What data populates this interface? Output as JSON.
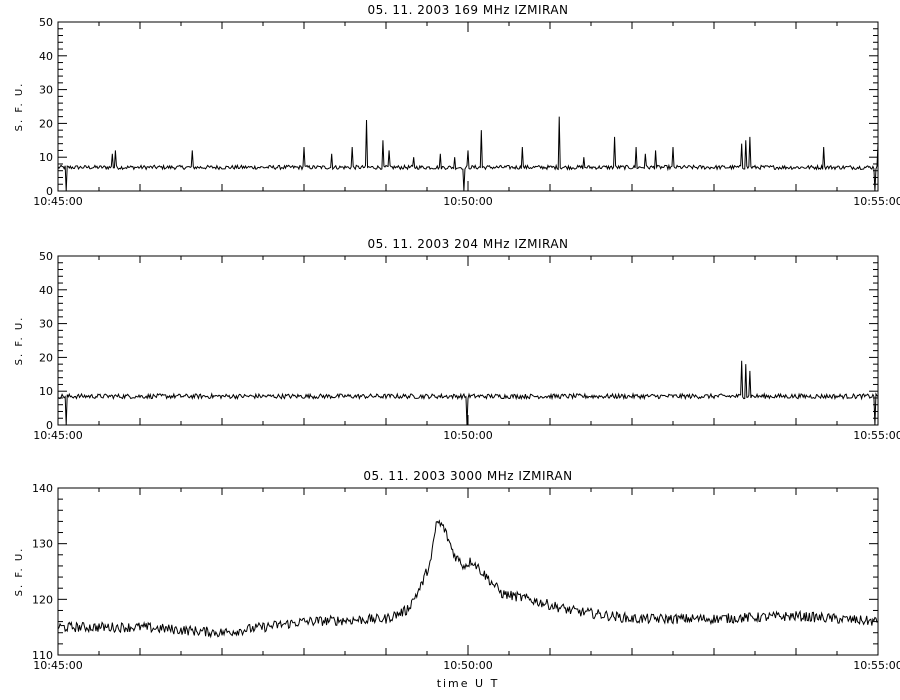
{
  "chart_data": [
    {
      "type": "line",
      "title": "05.  11.  2003    169 MHz    IZMIRAN",
      "ylabel": "S. F. U.",
      "xlabel": "",
      "x_tick_labels": [
        "10:45:00",
        "10:50:00",
        "10:55:00"
      ],
      "xlim": [
        "10:45:00",
        "10:55:00"
      ],
      "ylim": [
        0,
        50
      ],
      "y_ticks": [
        0,
        10,
        20,
        30,
        40,
        50
      ],
      "series": [
        {
          "baseline": 7,
          "noise": 0.6,
          "events": [
            {
              "t": "10:45:06",
              "v": 0
            },
            {
              "t": "10:45:40",
              "v": 11
            },
            {
              "t": "10:45:42",
              "v": 12
            },
            {
              "t": "10:46:38",
              "v": 12
            },
            {
              "t": "10:48:00",
              "v": 13
            },
            {
              "t": "10:48:20",
              "v": 11
            },
            {
              "t": "10:48:35",
              "v": 13
            },
            {
              "t": "10:48:46",
              "v": 21
            },
            {
              "t": "10:48:58",
              "v": 15
            },
            {
              "t": "10:49:02",
              "v": 12
            },
            {
              "t": "10:49:20",
              "v": 10
            },
            {
              "t": "10:49:40",
              "v": 11
            },
            {
              "t": "10:49:50",
              "v": 10
            },
            {
              "t": "10:49:57",
              "v": 0
            },
            {
              "t": "10:50:00",
              "v": 12
            },
            {
              "t": "10:50:10",
              "v": 18
            },
            {
              "t": "10:50:40",
              "v": 13
            },
            {
              "t": "10:51:07",
              "v": 22
            },
            {
              "t": "10:51:25",
              "v": 10
            },
            {
              "t": "10:51:47",
              "v": 16
            },
            {
              "t": "10:52:03",
              "v": 13
            },
            {
              "t": "10:52:10",
              "v": 11
            },
            {
              "t": "10:52:17",
              "v": 12
            },
            {
              "t": "10:52:30",
              "v": 13
            },
            {
              "t": "10:53:20",
              "v": 14
            },
            {
              "t": "10:53:23",
              "v": 15
            },
            {
              "t": "10:53:26",
              "v": 16
            },
            {
              "t": "10:54:20",
              "v": 13
            },
            {
              "t": "10:54:58",
              "v": 0
            },
            {
              "t": "10:55:00",
              "v": 14
            }
          ]
        }
      ]
    },
    {
      "type": "line",
      "title": "05.  11.  2003    204 MHz    IZMIRAN",
      "ylabel": "S. F. U.",
      "xlabel": "",
      "x_tick_labels": [
        "10:45:00",
        "10:50:00",
        "10:55:00"
      ],
      "xlim": [
        "10:45:00",
        "10:55:00"
      ],
      "ylim": [
        0,
        50
      ],
      "y_ticks": [
        0,
        10,
        20,
        30,
        40,
        50
      ],
      "series": [
        {
          "baseline": 8.5,
          "noise": 0.7,
          "events": [
            {
              "t": "10:45:06",
              "v": 0
            },
            {
              "t": "10:49:59",
              "v": 0
            },
            {
              "t": "10:53:20",
              "v": 19
            },
            {
              "t": "10:53:23",
              "v": 18
            },
            {
              "t": "10:53:26",
              "v": 16
            },
            {
              "t": "10:54:58",
              "v": 0
            }
          ]
        }
      ]
    },
    {
      "type": "line",
      "title": "05.  11.  2003    3000 MHz    IZMIRAN",
      "ylabel": "S. F. U.",
      "xlabel": "time  U T",
      "x_tick_labels": [
        "10:45:00",
        "10:50:00",
        "10:55:00"
      ],
      "xlim": [
        "10:45:00",
        "10:55:00"
      ],
      "ylim": [
        110,
        140
      ],
      "y_ticks": [
        110,
        120,
        130,
        140
      ],
      "series": [
        {
          "noise": 0.9,
          "envelope": [
            {
              "t": "10:45:00",
              "v": 115
            },
            {
              "t": "10:46:00",
              "v": 115
            },
            {
              "t": "10:47:00",
              "v": 114
            },
            {
              "t": "10:48:00",
              "v": 116
            },
            {
              "t": "10:49:00",
              "v": 116.5
            },
            {
              "t": "10:49:15",
              "v": 118
            },
            {
              "t": "10:49:25",
              "v": 122
            },
            {
              "t": "10:49:33",
              "v": 127
            },
            {
              "t": "10:49:37",
              "v": 134
            },
            {
              "t": "10:49:42",
              "v": 133
            },
            {
              "t": "10:49:50",
              "v": 128
            },
            {
              "t": "10:49:57",
              "v": 126
            },
            {
              "t": "10:50:03",
              "v": 127
            },
            {
              "t": "10:50:10",
              "v": 125
            },
            {
              "t": "10:50:25",
              "v": 121
            },
            {
              "t": "10:50:45",
              "v": 120
            },
            {
              "t": "10:51:15",
              "v": 118
            },
            {
              "t": "10:52:00",
              "v": 116.5
            },
            {
              "t": "10:53:00",
              "v": 116.5
            },
            {
              "t": "10:54:00",
              "v": 117
            },
            {
              "t": "10:55:00",
              "v": 116
            }
          ]
        }
      ]
    }
  ]
}
